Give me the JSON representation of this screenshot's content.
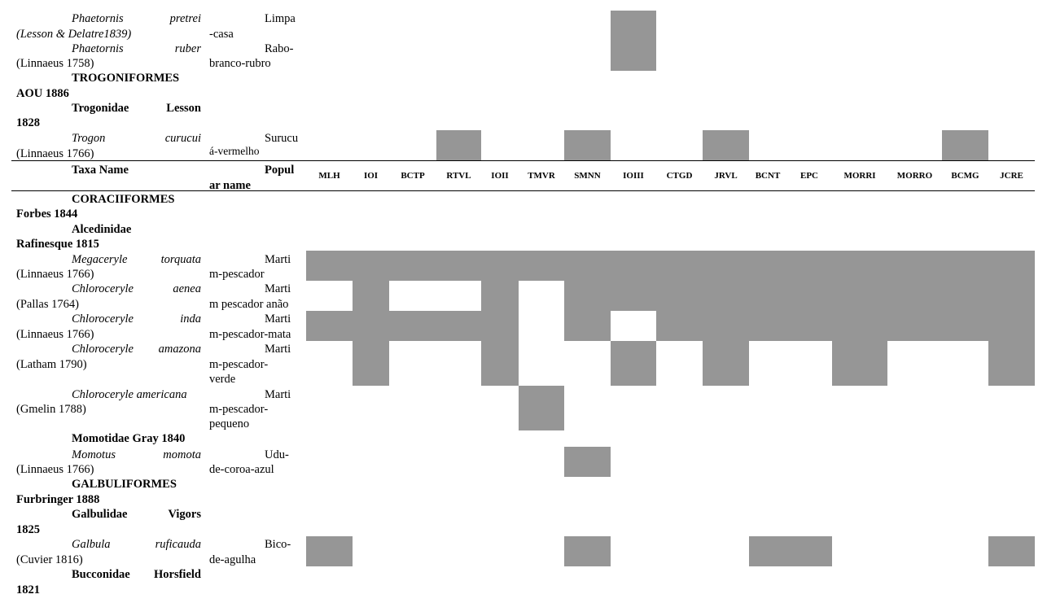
{
  "header": {
    "taxa_label": "Taxa Name",
    "popular_label_1": "Popul",
    "popular_label_2": "ar name",
    "columns": [
      "MLH",
      "IOI",
      "BCTP",
      "RTVL",
      "IOII",
      "TMVR",
      "SMNN",
      "IOIII",
      "CTGD",
      "JRVL",
      "BCNT",
      "EPC",
      "MORRI",
      "MORRO",
      "BCMG",
      "JCRE"
    ]
  },
  "rows_top": {
    "pretrei_genus": "Phaetornis",
    "pretrei_species": "pretrei",
    "pretrei_author": "(Lesson & Delatre1839)",
    "pretrei_pop1": "Limpa",
    "pretrei_pop2": "-casa",
    "ruber_genus": "Phaetornis",
    "ruber_species": "ruber",
    "ruber_author": "(Linnaeus 1758)",
    "ruber_pop1": "Rabo-",
    "ruber_pop2": "branco-rubro",
    "trogoniformes_1": "TROGONIFORMES",
    "trogoniformes_2": "AOU 1886",
    "trogonidae_1a": "Trogonidae",
    "trogonidae_1b": "Lesson",
    "trogonidae_2": "1828",
    "trogon_genus": "Trogon",
    "trogon_species": "curucui",
    "trogon_author": "(Linnaeus 1766)",
    "trogon_pop1": "Surucu",
    "trogon_pop2": "á-vermelho"
  },
  "rows": {
    "coraciiformes_1": "CORACIIFORMES",
    "coraciiformes_2": "Forbes 1844",
    "alcedinidae_1": "Alcedinidae",
    "alcedinidae_2": "Rafinesque 1815",
    "torquata_genus": "Megaceryle",
    "torquata_species": "torquata",
    "torquata_author": "(Linnaeus 1766)",
    "torquata_pop1": "Marti",
    "torquata_pop2": "m-pescador",
    "aenea_genus": "Chloroceryle",
    "aenea_species": "aenea",
    "aenea_author": "(Pallas 1764)",
    "aenea_pop1": "Marti",
    "aenea_pop2": "m pescador anão",
    "inda_genus": "Chloroceryle",
    "inda_species": "inda",
    "inda_author": "(Linnaeus 1766)",
    "inda_pop1": "Marti",
    "inda_pop2": "m-pescador-mata",
    "amazona_genus": "Chloroceryle",
    "amazona_species": "amazona",
    "amazona_author": "(Latham 1790)",
    "amazona_pop1": "Marti",
    "amazona_pop2": "m-pescador-",
    "amazona_pop3": "verde",
    "americana_name": "Chloroceryle americana",
    "americana_author": "(Gmelin 1788)",
    "americana_pop1": "Marti",
    "americana_pop2": "m-pescador-",
    "americana_pop3": "pequeno",
    "momotidae": "Momotidae Gray 1840",
    "momota_genus": "Momotus",
    "momota_species": "momota",
    "momota_author": "(Linnaeus 1766)",
    "momota_pop1": "Udu-",
    "momota_pop2": "de-coroa-azul",
    "galbuliformes_1": "GALBULIFORMES",
    "galbuliformes_2": "Furbringer 1888",
    "galbulidae_1a": "Galbulidae",
    "galbulidae_1b": "Vigors",
    "galbulidae_2": "1825",
    "galbula_genus": "Galbula",
    "galbula_species": "ruficauda",
    "galbula_author": "(Cuvier 1816)",
    "galbula_pop1": "Bico-",
    "galbula_pop2": "de-agulha",
    "bucconidae_1a": "Bucconidae",
    "bucconidae_1b": "Horsfield",
    "bucconidae_2": "1821"
  },
  "presence": {
    "Phaetornis pretrei": [
      "IOIII"
    ],
    "Phaetornis ruber": [
      "IOIII"
    ],
    "Trogon curucui": [
      "RTVL",
      "SMNN",
      "JRVL",
      "BCMG"
    ],
    "Megaceryle torquata": [
      "MLH",
      "IOI",
      "BCTP",
      "RTVL",
      "IOII",
      "TMVR",
      "SMNN",
      "IOIII",
      "CTGD",
      "JRVL",
      "BCNT",
      "EPC",
      "MORRI",
      "MORRO",
      "BCMG",
      "JCRE"
    ],
    "Chloroceryle aenea": [
      "IOI",
      "IOII",
      "SMNN",
      "IOIII",
      "CTGD",
      "JRVL",
      "BCNT",
      "EPC",
      "MORRI",
      "MORRO",
      "BCMG",
      "JCRE"
    ],
    "Chloroceryle inda": [
      "MLH",
      "IOI",
      "BCTP",
      "RTVL",
      "IOII",
      "SMNN",
      "CTGD",
      "JRVL",
      "BCNT",
      "EPC",
      "MORRI",
      "MORRO",
      "BCMG",
      "JCRE"
    ],
    "Chloroceryle amazona": [
      "IOI",
      "IOII",
      "IOIII",
      "JRVL",
      "MORRI",
      "JCRE"
    ],
    "Chloroceryle americana": [
      "TMVR"
    ],
    "Momotus momota": [
      "SMNN"
    ],
    "Galbula ruficauda": [
      "MLH",
      "SMNN",
      "BCNT",
      "EPC",
      "JCRE"
    ]
  },
  "colors": {
    "presence_fill": "#969696",
    "rule": "#000000"
  }
}
